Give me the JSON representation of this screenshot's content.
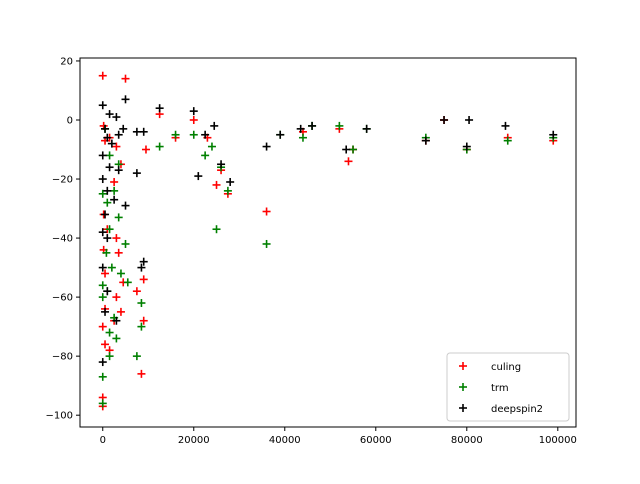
{
  "chart_data": {
    "type": "scatter",
    "title": "",
    "xlabel": "",
    "ylabel": "",
    "xlim": [
      -5000,
      104000
    ],
    "ylim": [
      -104,
      21
    ],
    "xticks": [
      0,
      20000,
      40000,
      60000,
      80000,
      100000
    ],
    "xtick_labels": [
      "0",
      "20000",
      "40000",
      "60000",
      "80000",
      "100000"
    ],
    "yticks": [
      20,
      0,
      -20,
      -40,
      -60,
      -80,
      -100
    ],
    "ytick_labels": [
      "20",
      "0",
      "−20",
      "−40",
      "−60",
      "−80",
      "−100"
    ],
    "grid": false,
    "legend_position": "lower-right",
    "marker": "plus",
    "series": [
      {
        "name": "culing",
        "color": "#ff0000",
        "points": [
          [
            0,
            15
          ],
          [
            5000,
            14
          ],
          [
            200,
            -2
          ],
          [
            500,
            -7
          ],
          [
            1500,
            -6
          ],
          [
            3000,
            -9
          ],
          [
            4000,
            -15
          ],
          [
            2500,
            -21
          ],
          [
            200,
            -32
          ],
          [
            1000,
            -37
          ],
          [
            3000,
            -40
          ],
          [
            200,
            -44
          ],
          [
            3500,
            -45
          ],
          [
            500,
            -52
          ],
          [
            4500,
            -55
          ],
          [
            9000,
            -54
          ],
          [
            3000,
            -60
          ],
          [
            7500,
            -58
          ],
          [
            500,
            -64
          ],
          [
            4000,
            -65
          ],
          [
            0,
            -70
          ],
          [
            2500,
            -68
          ],
          [
            9000,
            -68
          ],
          [
            500,
            -76
          ],
          [
            1500,
            -78
          ],
          [
            8500,
            -86
          ],
          [
            0,
            -94
          ],
          [
            0,
            -97
          ],
          [
            12500,
            2
          ],
          [
            20000,
            0
          ],
          [
            9500,
            -10
          ],
          [
            16000,
            -6
          ],
          [
            23000,
            -6
          ],
          [
            25000,
            -22
          ],
          [
            26000,
            -17
          ],
          [
            27500,
            -25
          ],
          [
            36000,
            -31
          ],
          [
            44000,
            -4
          ],
          [
            52000,
            -3
          ],
          [
            54000,
            -14
          ],
          [
            55000,
            -10
          ],
          [
            71000,
            -7
          ],
          [
            75000,
            0
          ],
          [
            80000,
            -10
          ],
          [
            89000,
            -6
          ],
          [
            99000,
            -7
          ]
        ]
      },
      {
        "name": "trm",
        "color": "#008000",
        "points": [
          [
            500,
            -3
          ],
          [
            1500,
            -12
          ],
          [
            3500,
            -15
          ],
          [
            0,
            -25
          ],
          [
            1000,
            -28
          ],
          [
            2500,
            -24
          ],
          [
            3500,
            -33
          ],
          [
            1500,
            -37
          ],
          [
            5000,
            -42
          ],
          [
            800,
            -45
          ],
          [
            2000,
            -50
          ],
          [
            4000,
            -52
          ],
          [
            5500,
            -55
          ],
          [
            8500,
            -62
          ],
          [
            0,
            -56
          ],
          [
            1000,
            -58
          ],
          [
            2500,
            -67
          ],
          [
            0,
            -60
          ],
          [
            1500,
            -72
          ],
          [
            3000,
            -74
          ],
          [
            8500,
            -70
          ],
          [
            1500,
            -80
          ],
          [
            7500,
            -80
          ],
          [
            0,
            -87
          ],
          [
            0,
            -96
          ],
          [
            12500,
            -9
          ],
          [
            16000,
            -5
          ],
          [
            20000,
            -5
          ],
          [
            22500,
            -12
          ],
          [
            24000,
            -9
          ],
          [
            25000,
            -37
          ],
          [
            26000,
            -16
          ],
          [
            27500,
            -24
          ],
          [
            36000,
            -42
          ],
          [
            39000,
            -5
          ],
          [
            44000,
            -6
          ],
          [
            46000,
            -2
          ],
          [
            52000,
            -2
          ],
          [
            55000,
            -10
          ],
          [
            58000,
            -3
          ],
          [
            71000,
            -6
          ],
          [
            80000,
            -10
          ],
          [
            89000,
            -7
          ],
          [
            99000,
            -6
          ]
        ]
      },
      {
        "name": "deepspin2",
        "color": "#000000",
        "points": [
          [
            0,
            5
          ],
          [
            1500,
            2
          ],
          [
            3000,
            1
          ],
          [
            5000,
            7
          ],
          [
            500,
            -3
          ],
          [
            1000,
            -6
          ],
          [
            2000,
            -8
          ],
          [
            3500,
            -5
          ],
          [
            4500,
            -3
          ],
          [
            7500,
            -4
          ],
          [
            9000,
            -4
          ],
          [
            0,
            -12
          ],
          [
            1500,
            -16
          ],
          [
            3500,
            -17
          ],
          [
            7500,
            -18
          ],
          [
            0,
            -20
          ],
          [
            1000,
            -24
          ],
          [
            2500,
            -27
          ],
          [
            5000,
            -29
          ],
          [
            500,
            -32
          ],
          [
            0,
            -38
          ],
          [
            1000,
            -40
          ],
          [
            0,
            -50
          ],
          [
            8500,
            -50
          ],
          [
            9000,
            -48
          ],
          [
            1000,
            -58
          ],
          [
            500,
            -65
          ],
          [
            3000,
            -68
          ],
          [
            0,
            -82
          ],
          [
            12500,
            4
          ],
          [
            20000,
            3
          ],
          [
            21000,
            -19
          ],
          [
            22500,
            -5
          ],
          [
            24500,
            -2
          ],
          [
            26000,
            -15
          ],
          [
            28000,
            -21
          ],
          [
            36000,
            -9
          ],
          [
            39000,
            -5
          ],
          [
            43500,
            -3
          ],
          [
            46000,
            -2
          ],
          [
            53500,
            -10
          ],
          [
            58000,
            -3
          ],
          [
            71000,
            -7
          ],
          [
            75000,
            0
          ],
          [
            80500,
            0
          ],
          [
            80000,
            -9
          ],
          [
            88500,
            -2
          ],
          [
            99000,
            -5
          ]
        ]
      }
    ]
  }
}
